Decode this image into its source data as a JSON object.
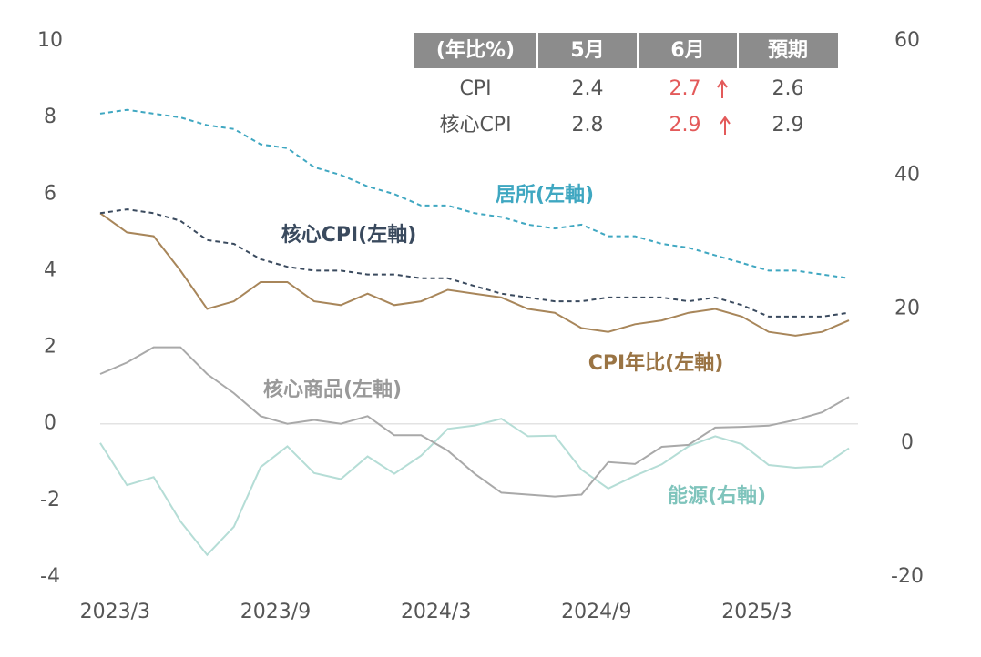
{
  "chart_data": {
    "type": "line",
    "categories": [
      null,
      "2023/3",
      null,
      null,
      null,
      null,
      null,
      "2023/9",
      null,
      null,
      null,
      null,
      null,
      "2024/3",
      null,
      null,
      null,
      null,
      null,
      "2024/9",
      null,
      null,
      null,
      null,
      null,
      "2025/3",
      null,
      null,
      null
    ],
    "series": [
      {
        "name": "居所(左軸)",
        "color": "#3fa7c1",
        "dash": true,
        "values": [
          8.1,
          8.2,
          8.1,
          8.0,
          7.8,
          7.7,
          7.3,
          7.2,
          6.7,
          6.5,
          6.2,
          6.0,
          5.7,
          5.7,
          5.5,
          5.4,
          5.2,
          5.1,
          5.2,
          4.9,
          4.9,
          4.7,
          4.6,
          4.4,
          4.2,
          4.0,
          4.0,
          3.9,
          3.8
        ]
      },
      {
        "name": "核心CPI(左軸)",
        "color": "#3a4a5e",
        "dash": true,
        "values": [
          5.5,
          5.6,
          5.5,
          5.3,
          4.8,
          4.7,
          4.3,
          4.1,
          4.0,
          4.0,
          3.9,
          3.9,
          3.8,
          3.8,
          3.6,
          3.4,
          3.3,
          3.2,
          3.2,
          3.3,
          3.3,
          3.3,
          3.2,
          3.3,
          3.1,
          2.8,
          2.8,
          2.8,
          2.9
        ]
      },
      {
        "name": "CPI年比(左軸)",
        "color": "#a8865a",
        "dash": false,
        "values": [
          5.5,
          5.0,
          4.9,
          4.0,
          3.0,
          3.2,
          3.7,
          3.7,
          3.2,
          3.1,
          3.4,
          3.1,
          3.2,
          3.5,
          3.4,
          3.3,
          3.0,
          2.9,
          2.5,
          2.4,
          2.6,
          2.7,
          2.9,
          3.0,
          2.8,
          2.4,
          2.3,
          2.4,
          2.7
        ]
      },
      {
        "name": "核心商品(左軸)",
        "color": "#a9a9a9",
        "dash": false,
        "values": [
          1.3,
          1.6,
          2.0,
          2.0,
          1.3,
          0.8,
          0.2,
          0.0,
          0.1,
          0.0,
          0.2,
          -0.3,
          -0.3,
          -0.7,
          -1.3,
          -1.8,
          -1.85,
          -1.9,
          -1.85,
          -1.0,
          -1.05,
          -0.6,
          -0.55,
          -0.1,
          -0.08,
          -0.05,
          0.1,
          0.3,
          0.7
        ]
      },
      {
        "name": "能源(右軸)",
        "color": "#b5ddd6",
        "dash": false,
        "axis": "y2",
        "values": [
          0.0,
          -6.3,
          -5.1,
          -11.7,
          -16.7,
          -12.5,
          -3.6,
          -0.5,
          -4.5,
          -5.4,
          -2.0,
          -4.6,
          -1.9,
          2.1,
          2.6,
          3.6,
          1.0,
          1.1,
          -4.0,
          -6.8,
          -4.9,
          -3.2,
          -0.5,
          1.0,
          -0.2,
          -3.3,
          -3.7,
          -3.5,
          -0.8
        ]
      }
    ],
    "ylim": [
      -4,
      10
    ],
    "yticks": [
      -4,
      -2,
      0,
      2,
      4,
      6,
      8,
      10
    ],
    "y2lim": [
      -20,
      60
    ],
    "y2ticks": [
      -20,
      0,
      20,
      40,
      60
    ]
  },
  "table": {
    "header": [
      "(年比%)",
      "5月",
      "6月",
      "預期"
    ],
    "rows": [
      [
        "CPI",
        2.4,
        2.7,
        2.6
      ],
      [
        "核心CPI",
        2.8,
        2.9,
        2.9
      ]
    ]
  }
}
